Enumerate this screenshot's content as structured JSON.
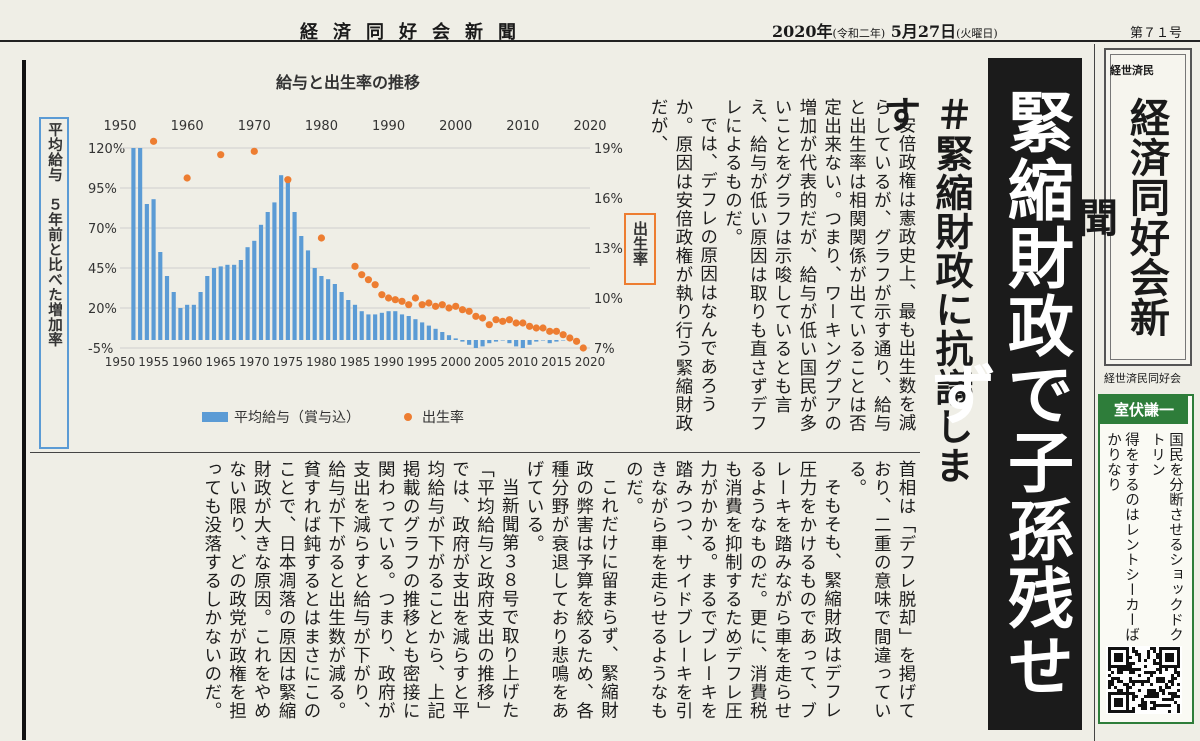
{
  "masthead": {
    "name": "経済同好会新聞",
    "date_year": "2020年",
    "date_era": "(令和二年)",
    "date_day": " 5月27日",
    "date_weekday": "(火曜日)",
    "issue": "第７１号"
  },
  "headline": "緊縮財政で子孫残せず",
  "subheadline": "＃緊縮財政に抗議します",
  "article": {
    "top": [
      "安倍政権は憲政史上、最も出生数を減らしているが、グラフが示す通り、給与と出生率は相関関係が出ていることは否定出来ない。つまり、ワーキングプアの増加が代表的だが、給与が低い国民が多いことをグラフは示唆しているとも言え、給与が低い原因は取りも直さずデフレによるものだ。",
      "では、デフレの原因はなんであろうか。原因は安倍政権が執り行う緊縮財政だが、"
    ],
    "bottom": [
      "首相は「デフレ脱却」を掲げており、二重の意味で間違っている。",
      "そもそも、緊縮財政はデフレ圧力をかけるものであって、ブレーキを踏みながら車を走らせるようなものだ。更に、消費税も消費を抑制するためデフレ圧力がかかる。まるでブレーキを踏みつつ、サイドブレーキを引きながら車を走らせるようなものだ。",
      "これだけに留まらず、緊縮財政の弊害は予算を絞るため、各種分野が衰退しており悲鳴をあげている。",
      "当新聞第３８号で取り上げた「平均給与と政府支出の推移」では、政府が支出を減らすと平均給与が下がることから、上記掲載のグラフの推移とも密接に関わっている。つまり、政府が支出を減らすと給与が下がり、給与が下がると出生数が減る。貧すれば鈍するとはまさにこのことで、日本凋落の原因は緊縮財政が大きな原因。これをやめない限り、どの政党が政権を担っても没落するしかないのだ。"
    ]
  },
  "logo": {
    "small": "経世済民",
    "big": "経済同好会新聞"
  },
  "publisher": "経世済民同好会",
  "ad": {
    "title": "室伏謙一",
    "line1": "国民を分断させるショックドクトリン",
    "line2": "得をするのはレントシーカーばかりなり"
  },
  "colors": {
    "bar": "#5b9bd5",
    "dot": "#ed7d31",
    "ad_green": "#2e7d3a",
    "headline_bg": "#1b1b1b"
  },
  "chart_data": {
    "type": "bar",
    "title": "給与と出生率の推移",
    "ylabel": "平均給与　５年前と比べた増加率",
    "y2label": "出生率",
    "x_ticks": [
      1950,
      1955,
      1960,
      1965,
      1970,
      1975,
      1980,
      1985,
      1990,
      1995,
      2000,
      2005,
      2010,
      2015,
      2020
    ],
    "x_ticks_top": [
      1950,
      1960,
      1970,
      1980,
      1990,
      2000,
      2010,
      2020
    ],
    "y_ticks": [
      "120%",
      "95%",
      "70%",
      "45%",
      "20%",
      "-5%"
    ],
    "y2_ticks": [
      "19%",
      "16%",
      "13%",
      "10%",
      "7%"
    ],
    "ylim": [
      -5,
      120
    ],
    "y2lim": [
      7,
      19
    ],
    "legend_position": "bottom",
    "series": [
      {
        "name": "平均給与（賞与込）",
        "kind": "bar",
        "x": [
          1952,
          1953,
          1954,
          1955,
          1956,
          1957,
          1958,
          1959,
          1960,
          1961,
          1962,
          1963,
          1964,
          1965,
          1966,
          1967,
          1968,
          1969,
          1970,
          1971,
          1972,
          1973,
          1974,
          1975,
          1976,
          1977,
          1978,
          1979,
          1980,
          1981,
          1982,
          1983,
          1984,
          1985,
          1986,
          1987,
          1988,
          1989,
          1990,
          1991,
          1992,
          1993,
          1994,
          1995,
          1996,
          1997,
          1998,
          1999,
          2000,
          2001,
          2002,
          2003,
          2004,
          2005,
          2006,
          2007,
          2008,
          2009,
          2010,
          2011,
          2012,
          2013,
          2014,
          2015,
          2016,
          2017,
          2018
        ],
        "values": [
          120,
          120,
          85,
          88,
          55,
          40,
          30,
          20,
          22,
          22,
          30,
          40,
          45,
          46,
          47,
          47,
          50,
          58,
          62,
          72,
          80,
          86,
          103,
          102,
          80,
          65,
          56,
          45,
          40,
          38,
          35,
          30,
          25,
          22,
          18,
          16,
          16,
          17,
          18,
          18,
          16,
          15,
          13,
          11,
          9,
          7,
          5,
          3,
          1,
          -1,
          -3,
          -5,
          -4,
          -2,
          -1,
          0,
          -2,
          -4,
          -5,
          -3,
          -1,
          0,
          -2,
          -1,
          0,
          1,
          1
        ]
      },
      {
        "name": "出生率",
        "kind": "scatter",
        "x": [
          1955,
          1960,
          1965,
          1970,
          1975,
          1980,
          1985,
          1986,
          1987,
          1988,
          1989,
          1990,
          1991,
          1992,
          1993,
          1994,
          1995,
          1996,
          1997,
          1998,
          1999,
          2000,
          2001,
          2002,
          2003,
          2004,
          2005,
          2006,
          2007,
          2008,
          2009,
          2010,
          2011,
          2012,
          2013,
          2014,
          2015,
          2016,
          2017,
          2018,
          2019
        ],
        "values": [
          19.4,
          17.2,
          18.6,
          18.8,
          17.1,
          13.6,
          11.9,
          11.4,
          11.1,
          10.8,
          10.2,
          10.0,
          9.9,
          9.8,
          9.6,
          10.0,
          9.6,
          9.7,
          9.5,
          9.6,
          9.4,
          9.5,
          9.3,
          9.2,
          8.9,
          8.8,
          8.4,
          8.7,
          8.6,
          8.7,
          8.5,
          8.5,
          8.3,
          8.2,
          8.2,
          8.0,
          8.0,
          7.8,
          7.6,
          7.4,
          7.0
        ]
      }
    ]
  }
}
